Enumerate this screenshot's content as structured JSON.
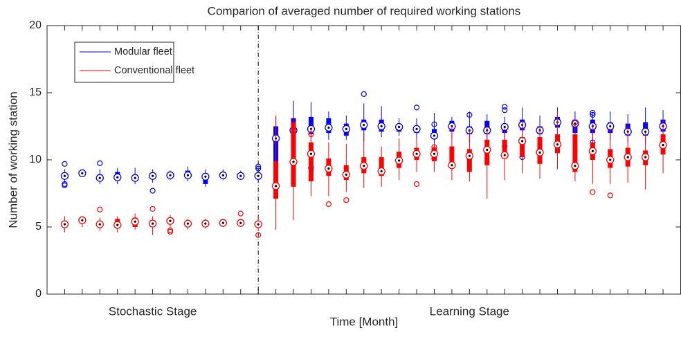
{
  "chart_data": {
    "type": "boxplot",
    "title": "Comparion of averaged number of required working stations",
    "ylabel": "Number of working station",
    "xlabel": "Time [Month]",
    "annotations": [
      "Stochastic Stage",
      "Learning Stage"
    ],
    "divider_x": 12,
    "xlim": [
      0,
      36
    ],
    "xticks": [
      1,
      2,
      3,
      4,
      5,
      6,
      7,
      8,
      9,
      10,
      11,
      12,
      13,
      14,
      15,
      16,
      17,
      18,
      19,
      20,
      21,
      22,
      23,
      24,
      25,
      26,
      27,
      28,
      29,
      30,
      31,
      32,
      33,
      34,
      35
    ],
    "ylim": [
      0,
      20
    ],
    "yticks": [
      0,
      5,
      10,
      15,
      20
    ],
    "legend": "upper left",
    "x": [
      1,
      2,
      3,
      4,
      5,
      6,
      7,
      8,
      9,
      10,
      11,
      12,
      13,
      14,
      15,
      16,
      17,
      18,
      19,
      20,
      21,
      22,
      23,
      24,
      25,
      26,
      27,
      28,
      29,
      30,
      31,
      32,
      33,
      34,
      35
    ],
    "series": [
      {
        "name": "Modular fleet",
        "color": "#0000ff",
        "whisker_low": [
          8.3,
          8.8,
          8.2,
          8.2,
          8.2,
          8.3,
          8.5,
          8.4,
          8.0,
          8.5,
          8.5,
          8.3,
          9.0,
          9.5,
          10.8,
          11.5,
          11.5,
          11.4,
          11.7,
          11.8,
          11.5,
          10.5,
          11.6,
          11.3,
          10.9,
          11.2,
          11.5,
          11.2,
          11.8,
          11.5,
          11.2,
          11.5,
          11.3,
          11.2,
          11.5
        ],
        "q1": [
          8.6,
          8.9,
          8.5,
          8.5,
          8.5,
          8.6,
          8.7,
          8.6,
          8.2,
          8.7,
          8.7,
          8.6,
          9.7,
          10.0,
          11.9,
          12.0,
          11.8,
          12.2,
          12.1,
          12.1,
          12.0,
          11.6,
          12.1,
          11.9,
          11.9,
          12.0,
          12.2,
          11.9,
          12.4,
          12.0,
          12.0,
          12.0,
          11.8,
          11.8,
          12.1
        ],
        "median": [
          8.8,
          9.0,
          8.65,
          8.7,
          8.65,
          8.8,
          8.85,
          8.85,
          8.75,
          8.85,
          8.8,
          8.8,
          11.6,
          12.2,
          12.3,
          12.4,
          12.3,
          12.6,
          12.5,
          12.45,
          12.3,
          11.8,
          12.5,
          12.2,
          12.2,
          12.45,
          12.6,
          12.2,
          12.8,
          12.7,
          12.5,
          12.5,
          12.1,
          12.1,
          12.5
        ],
        "q3": [
          9.0,
          9.05,
          8.9,
          9.1,
          8.9,
          9.0,
          9.0,
          9.2,
          9.0,
          9.0,
          8.95,
          9.0,
          12.5,
          13.1,
          13.2,
          13.1,
          12.7,
          13.0,
          13.0,
          12.6,
          12.5,
          12.3,
          12.9,
          12.5,
          12.9,
          12.6,
          13.0,
          12.5,
          13.2,
          13.0,
          13.0,
          12.8,
          12.7,
          12.8,
          13.0
        ],
        "whisker_high": [
          9.3,
          9.1,
          9.3,
          9.4,
          9.4,
          9.3,
          9.2,
          9.5,
          9.3,
          9.3,
          9.2,
          9.4,
          13.2,
          14.4,
          14.3,
          13.6,
          13.3,
          14.2,
          14.0,
          13.1,
          13.1,
          13.5,
          13.2,
          13.6,
          13.4,
          13.2,
          13.9,
          13.3,
          13.9,
          13.6,
          13.5,
          13.6,
          13.4,
          13.9,
          13.7
        ],
        "outliers": [
          [
            9.7,
            8.1,
            8.2
          ],
          [],
          [
            9.75
          ],
          [],
          [],
          [
            7.7
          ],
          [],
          [],
          [],
          [],
          [],
          [
            9.5,
            9.35
          ],
          [],
          [],
          [
            9.4
          ],
          [],
          [],
          [
            14.9
          ],
          [],
          [],
          [
            13.9
          ],
          [
            10.1,
            12.65
          ],
          [],
          [
            13.35
          ],
          [],
          [
            13.7,
            13.95,
            11.0
          ],
          [
            10.2
          ],
          [],
          [],
          [],
          [
            13.5,
            13.35,
            11.3
          ],
          [],
          [],
          [],
          []
        ]
      },
      {
        "name": "Conventional fleet",
        "color": "#ff0000",
        "whisker_low": [
          4.6,
          5.0,
          4.7,
          4.6,
          4.8,
          4.4,
          4.9,
          4.8,
          4.9,
          5.0,
          5.0,
          4.7,
          4.8,
          5.5,
          7.3,
          7.3,
          7.6,
          7.9,
          8.0,
          8.5,
          9.1,
          9.1,
          8.5,
          8.4,
          7.1,
          8.5,
          9.0,
          8.6,
          9.3,
          8.4,
          8.2,
          8.2,
          8.3,
          7.8,
          9.0
        ],
        "q1": [
          5.0,
          5.4,
          5.0,
          4.9,
          5.0,
          5.0,
          5.2,
          5.1,
          5.1,
          5.2,
          5.2,
          5.0,
          7.1,
          8.0,
          8.4,
          8.8,
          8.5,
          9.0,
          8.8,
          9.4,
          10.0,
          9.9,
          9.5,
          9.1,
          9.6,
          10.1,
          10.2,
          9.7,
          10.5,
          9.1,
          10.0,
          9.4,
          9.5,
          9.6,
          10.4
        ],
        "median": [
          5.2,
          5.5,
          5.2,
          5.15,
          5.4,
          5.25,
          5.45,
          5.25,
          5.25,
          5.3,
          5.3,
          5.2,
          8.05,
          9.85,
          10.45,
          9.35,
          8.9,
          9.55,
          9.15,
          9.95,
          10.45,
          10.45,
          9.6,
          10.3,
          10.75,
          10.35,
          11.4,
          10.55,
          11.15,
          9.55,
          10.65,
          10.0,
          10.2,
          10.2,
          11.1
        ],
        "q3": [
          5.4,
          5.6,
          5.4,
          5.6,
          5.7,
          5.5,
          5.6,
          5.4,
          5.4,
          5.4,
          5.4,
          5.4,
          9.9,
          12.8,
          11.3,
          10.1,
          9.6,
          10.2,
          10.2,
          10.6,
          10.9,
          10.9,
          11.0,
          10.8,
          11.5,
          11.5,
          11.7,
          11.7,
          11.9,
          11.9,
          11.3,
          10.8,
          10.9,
          10.7,
          11.9
        ],
        "whisker_high": [
          5.8,
          5.7,
          5.7,
          5.8,
          6.0,
          5.8,
          5.9,
          5.6,
          5.6,
          5.6,
          5.6,
          5.8,
          13.3,
          13.1,
          12.4,
          11.3,
          11.2,
          12.0,
          11.0,
          11.6,
          11.6,
          11.3,
          12.5,
          12.2,
          12.5,
          12.4,
          12.8,
          12.5,
          13.7,
          12.6,
          12.7,
          12.3,
          12.7,
          12.0,
          13.0
        ],
        "outliers": [
          [],
          [],
          [
            6.3
          ],
          [],
          [],
          [
            6.35
          ],
          [
            4.75,
            4.65
          ],
          [],
          [],
          [],
          [
            6.0
          ],
          [
            4.4
          ],
          [],
          [],
          [
            11.9
          ],
          [
            6.7
          ],
          [
            7.0
          ],
          [],
          [],
          [],
          [
            8.2
          ],
          [
            10.75,
            10.95
          ],
          [],
          [],
          [],
          [],
          [],
          [],
          [],
          [
            12.75
          ],
          [
            7.6
          ],
          [
            7.35
          ],
          [],
          [],
          []
        ]
      }
    ]
  }
}
